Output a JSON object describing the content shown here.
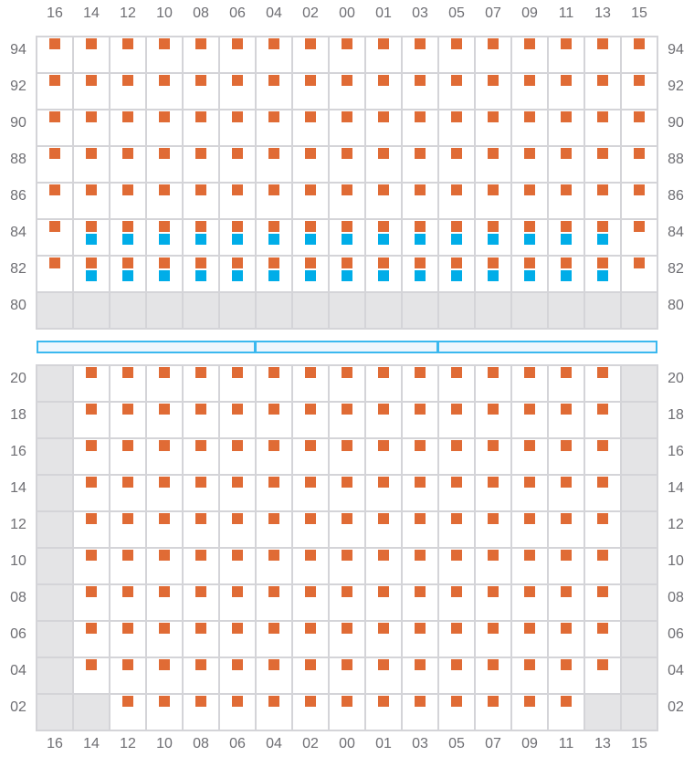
{
  "colors": {
    "orange": "#e06b35",
    "blue": "#00ade8",
    "unavailable": "#e4e4e6",
    "grid": "#d4d4d8",
    "separator": "#3bb8ef"
  },
  "columns": [
    "16",
    "14",
    "12",
    "10",
    "08",
    "06",
    "04",
    "02",
    "00",
    "01",
    "03",
    "05",
    "07",
    "09",
    "11",
    "13",
    "15"
  ],
  "legend_codes": {
    "O": "orange-marker",
    "OB": "orange-and-blue-markers",
    "G": "unavailable-cell",
    "": "empty-cell"
  },
  "top_section": {
    "rows": [
      {
        "label": "94",
        "cells": [
          "O",
          "O",
          "O",
          "O",
          "O",
          "O",
          "O",
          "O",
          "O",
          "O",
          "O",
          "O",
          "O",
          "O",
          "O",
          "O",
          "O"
        ]
      },
      {
        "label": "92",
        "cells": [
          "O",
          "O",
          "O",
          "O",
          "O",
          "O",
          "O",
          "O",
          "O",
          "O",
          "O",
          "O",
          "O",
          "O",
          "O",
          "O",
          "O"
        ]
      },
      {
        "label": "90",
        "cells": [
          "O",
          "O",
          "O",
          "O",
          "O",
          "O",
          "O",
          "O",
          "O",
          "O",
          "O",
          "O",
          "O",
          "O",
          "O",
          "O",
          "O"
        ]
      },
      {
        "label": "88",
        "cells": [
          "O",
          "O",
          "O",
          "O",
          "O",
          "O",
          "O",
          "O",
          "O",
          "O",
          "O",
          "O",
          "O",
          "O",
          "O",
          "O",
          "O"
        ]
      },
      {
        "label": "86",
        "cells": [
          "O",
          "O",
          "O",
          "O",
          "O",
          "O",
          "O",
          "O",
          "O",
          "O",
          "O",
          "O",
          "O",
          "O",
          "O",
          "O",
          "O"
        ]
      },
      {
        "label": "84",
        "cells": [
          "O",
          "OB",
          "OB",
          "OB",
          "OB",
          "OB",
          "OB",
          "OB",
          "OB",
          "OB",
          "OB",
          "OB",
          "OB",
          "OB",
          "OB",
          "OB",
          "O"
        ]
      },
      {
        "label": "82",
        "cells": [
          "O",
          "OB",
          "OB",
          "OB",
          "OB",
          "OB",
          "OB",
          "OB",
          "OB",
          "OB",
          "OB",
          "OB",
          "OB",
          "OB",
          "OB",
          "OB",
          "O"
        ]
      },
      {
        "label": "80",
        "cells": [
          "G",
          "G",
          "G",
          "G",
          "G",
          "G",
          "G",
          "G",
          "G",
          "G",
          "G",
          "G",
          "G",
          "G",
          "G",
          "G",
          "G"
        ]
      }
    ]
  },
  "separator_segments": 3,
  "bottom_section": {
    "rows": [
      {
        "label": "20",
        "cells": [
          "G",
          "O",
          "O",
          "O",
          "O",
          "O",
          "O",
          "O",
          "O",
          "O",
          "O",
          "O",
          "O",
          "O",
          "O",
          "O",
          "G"
        ]
      },
      {
        "label": "18",
        "cells": [
          "G",
          "O",
          "O",
          "O",
          "O",
          "O",
          "O",
          "O",
          "O",
          "O",
          "O",
          "O",
          "O",
          "O",
          "O",
          "O",
          "G"
        ]
      },
      {
        "label": "16",
        "cells": [
          "G",
          "O",
          "O",
          "O",
          "O",
          "O",
          "O",
          "O",
          "O",
          "O",
          "O",
          "O",
          "O",
          "O",
          "O",
          "O",
          "G"
        ]
      },
      {
        "label": "14",
        "cells": [
          "G",
          "O",
          "O",
          "O",
          "O",
          "O",
          "O",
          "O",
          "O",
          "O",
          "O",
          "O",
          "O",
          "O",
          "O",
          "O",
          "G"
        ]
      },
      {
        "label": "12",
        "cells": [
          "G",
          "O",
          "O",
          "O",
          "O",
          "O",
          "O",
          "O",
          "O",
          "O",
          "O",
          "O",
          "O",
          "O",
          "O",
          "O",
          "G"
        ]
      },
      {
        "label": "10",
        "cells": [
          "G",
          "O",
          "O",
          "O",
          "O",
          "O",
          "O",
          "O",
          "O",
          "O",
          "O",
          "O",
          "O",
          "O",
          "O",
          "O",
          "G"
        ]
      },
      {
        "label": "08",
        "cells": [
          "G",
          "O",
          "O",
          "O",
          "O",
          "O",
          "O",
          "O",
          "O",
          "O",
          "O",
          "O",
          "O",
          "O",
          "O",
          "O",
          "G"
        ]
      },
      {
        "label": "06",
        "cells": [
          "G",
          "O",
          "O",
          "O",
          "O",
          "O",
          "O",
          "O",
          "O",
          "O",
          "O",
          "O",
          "O",
          "O",
          "O",
          "O",
          "G"
        ]
      },
      {
        "label": "04",
        "cells": [
          "G",
          "O",
          "O",
          "O",
          "O",
          "O",
          "O",
          "O",
          "O",
          "O",
          "O",
          "O",
          "O",
          "O",
          "O",
          "O",
          "G"
        ]
      },
      {
        "label": "02",
        "cells": [
          "G",
          "G",
          "O",
          "O",
          "O",
          "O",
          "O",
          "O",
          "O",
          "O",
          "O",
          "O",
          "O",
          "O",
          "O",
          "G",
          "G"
        ]
      }
    ]
  }
}
